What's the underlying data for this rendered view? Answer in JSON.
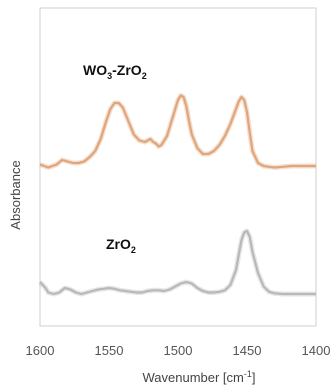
{
  "chart_data": {
    "type": "line",
    "title": "",
    "xlabel": "Wavenumber [cm",
    "xlabel_sup": "-1",
    "xlabel_close": "]",
    "ylabel": "Absorbance",
    "xlim": [
      1600,
      1400
    ],
    "x_reversed": true,
    "y_ticks_visible": false,
    "grid": false,
    "x_ticks": [
      1600,
      1550,
      1500,
      1450,
      1400
    ],
    "x_tick_labels": [
      "1600",
      "1550",
      "1500",
      "1450",
      "1400"
    ],
    "ylim": [
      0,
      1
    ],
    "series": [
      {
        "name": "WO3-ZrO2",
        "label_main": "WO",
        "label_sub1": "3",
        "label_mid": "-ZrO",
        "label_sub2": "2",
        "color": "#e0a57a",
        "x": [
          1600,
          1594,
          1588,
          1584,
          1580,
          1576,
          1572,
          1568,
          1564,
          1560,
          1556,
          1552,
          1549,
          1546,
          1543,
          1540,
          1536,
          1532,
          1528,
          1524,
          1520,
          1518,
          1516,
          1514,
          1512,
          1508,
          1504,
          1500,
          1498,
          1496,
          1494,
          1492,
          1490,
          1486,
          1482,
          1478,
          1474,
          1470,
          1466,
          1462,
          1458,
          1456,
          1454,
          1452,
          1450,
          1448,
          1446,
          1442,
          1438,
          1434,
          1430,
          1424,
          1418,
          1412,
          1406,
          1400
        ],
        "y": [
          0.37,
          0.35,
          0.37,
          0.4,
          0.39,
          0.38,
          0.38,
          0.39,
          0.42,
          0.46,
          0.54,
          0.66,
          0.74,
          0.78,
          0.78,
          0.75,
          0.66,
          0.57,
          0.53,
          0.52,
          0.54,
          0.52,
          0.51,
          0.49,
          0.5,
          0.56,
          0.68,
          0.8,
          0.83,
          0.82,
          0.76,
          0.66,
          0.57,
          0.48,
          0.44,
          0.44,
          0.46,
          0.5,
          0.56,
          0.64,
          0.74,
          0.79,
          0.82,
          0.8,
          0.72,
          0.58,
          0.46,
          0.38,
          0.36,
          0.355,
          0.35,
          0.355,
          0.36,
          0.36,
          0.36,
          0.36
        ]
      },
      {
        "name": "ZrO2",
        "label_main": "ZrO",
        "label_sub1": "2",
        "label_mid": "",
        "label_sub2": "",
        "color": "#b8b8b8",
        "x": [
          1600,
          1598,
          1596,
          1594,
          1590,
          1586,
          1582,
          1578,
          1574,
          1570,
          1566,
          1562,
          1558,
          1554,
          1550,
          1546,
          1542,
          1538,
          1534,
          1530,
          1526,
          1522,
          1518,
          1514,
          1510,
          1506,
          1502,
          1498,
          1494,
          1490,
          1486,
          1482,
          1478,
          1474,
          1470,
          1466,
          1462,
          1458,
          1456,
          1454,
          1452,
          1450,
          1448,
          1446,
          1442,
          1438,
          1434,
          1430,
          1424,
          1418,
          1412,
          1406,
          1400
        ],
        "y": [
          0.12,
          0.1,
          0.08,
          0.05,
          0.04,
          0.05,
          0.08,
          0.07,
          0.05,
          0.04,
          0.05,
          0.06,
          0.07,
          0.075,
          0.08,
          0.075,
          0.065,
          0.06,
          0.055,
          0.05,
          0.05,
          0.06,
          0.065,
          0.065,
          0.06,
          0.07,
          0.09,
          0.11,
          0.12,
          0.11,
          0.08,
          0.06,
          0.05,
          0.05,
          0.055,
          0.065,
          0.1,
          0.2,
          0.3,
          0.4,
          0.45,
          0.46,
          0.42,
          0.32,
          0.18,
          0.09,
          0.055,
          0.045,
          0.04,
          0.04,
          0.04,
          0.04,
          0.04
        ]
      }
    ]
  }
}
